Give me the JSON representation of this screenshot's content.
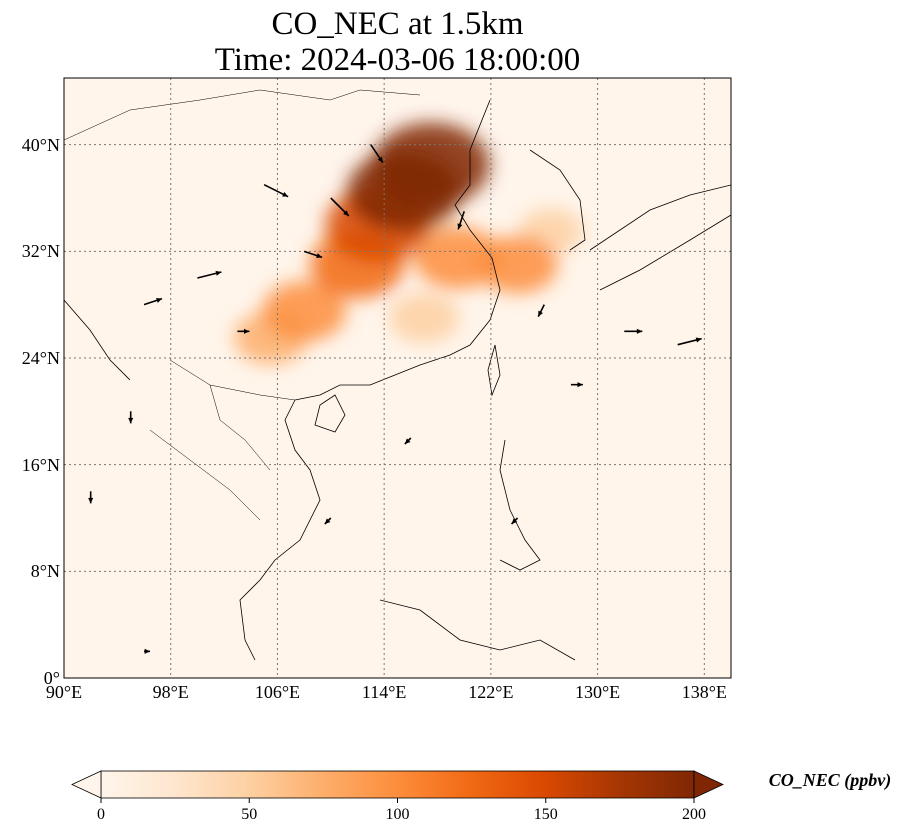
{
  "title_line1": "CO_NEC at 1.5km",
  "title_line2": "Time: 2024-03-06 18:00:00",
  "map": {
    "extent": {
      "lon_min": 90,
      "lon_max": 140,
      "lat_min": 0,
      "lat_max": 45
    },
    "lon_ticks": [
      {
        "value": 90,
        "label": "90°E"
      },
      {
        "value": 98,
        "label": "98°E"
      },
      {
        "value": 106,
        "label": "106°E"
      },
      {
        "value": 114,
        "label": "114°E"
      },
      {
        "value": 122,
        "label": "122°E"
      },
      {
        "value": 130,
        "label": "130°E"
      },
      {
        "value": 138,
        "label": "138°E"
      }
    ],
    "lat_ticks": [
      {
        "value": 0,
        "label": "0°"
      },
      {
        "value": 8,
        "label": "8°N"
      },
      {
        "value": 16,
        "label": "16°N"
      },
      {
        "value": 24,
        "label": "24°N"
      },
      {
        "value": 32,
        "label": "32°N"
      },
      {
        "value": 40,
        "label": "40°N"
      }
    ],
    "gridlines": true,
    "background_color": "#fff5eb",
    "plume_regions": [
      {
        "lon": 117.5,
        "lat": 38.5,
        "level": 200
      },
      {
        "lon": 115.5,
        "lat": 36.5,
        "level": 190
      },
      {
        "lon": 113.5,
        "lat": 34.0,
        "level": 160
      },
      {
        "lon": 112.0,
        "lat": 31.0,
        "level": 130
      },
      {
        "lon": 108.0,
        "lat": 27.5,
        "level": 100
      },
      {
        "lon": 105.5,
        "lat": 25.5,
        "level": 70
      },
      {
        "lon": 119.5,
        "lat": 31.5,
        "level": 110
      },
      {
        "lon": 124.0,
        "lat": 31.0,
        "level": 90
      },
      {
        "lon": 117.0,
        "lat": 27.0,
        "level": 60
      },
      {
        "lon": 126.5,
        "lat": 33.5,
        "level": 40
      }
    ],
    "wind_vectors": [
      {
        "lon": 105,
        "lat": 37,
        "u": 4,
        "v": -2
      },
      {
        "lon": 110,
        "lat": 36,
        "u": 3,
        "v": -3
      },
      {
        "lon": 100,
        "lat": 30,
        "u": 4,
        "v": 1
      },
      {
        "lon": 96,
        "lat": 28,
        "u": 3,
        "v": 1
      },
      {
        "lon": 103,
        "lat": 26,
        "u": 2,
        "v": 0
      },
      {
        "lon": 108,
        "lat": 32,
        "u": 3,
        "v": -1
      },
      {
        "lon": 113,
        "lat": 40,
        "u": 2,
        "v": -3
      },
      {
        "lon": 120,
        "lat": 35,
        "u": -1,
        "v": -3
      },
      {
        "lon": 126,
        "lat": 28,
        "u": -1,
        "v": -2
      },
      {
        "lon": 132,
        "lat": 26,
        "u": 3,
        "v": 0
      },
      {
        "lon": 136,
        "lat": 25,
        "u": 4,
        "v": 1
      },
      {
        "lon": 128,
        "lat": 22,
        "u": 2,
        "v": 0
      },
      {
        "lon": 116,
        "lat": 18,
        "u": -1,
        "v": -1
      },
      {
        "lon": 95,
        "lat": 20,
        "u": 0,
        "v": -2
      },
      {
        "lon": 92,
        "lat": 14,
        "u": 0,
        "v": -2
      },
      {
        "lon": 124,
        "lat": 12,
        "u": -1,
        "v": -1
      },
      {
        "lon": 110,
        "lat": 12,
        "u": -1,
        "v": -1
      },
      {
        "lon": 96,
        "lat": 2,
        "u": 1,
        "v": 0
      }
    ]
  },
  "colorbar": {
    "label": "CO_NEC (ppbv)",
    "min": 0,
    "max": 200,
    "ticks": [
      "0",
      "50",
      "100",
      "150",
      "200"
    ],
    "extend": "both",
    "colormap": [
      "#fff5eb",
      "#fee6ce",
      "#fdd0a2",
      "#fdae6b",
      "#fd8d3c",
      "#f16913",
      "#d94801",
      "#a63603",
      "#7f2704"
    ]
  }
}
